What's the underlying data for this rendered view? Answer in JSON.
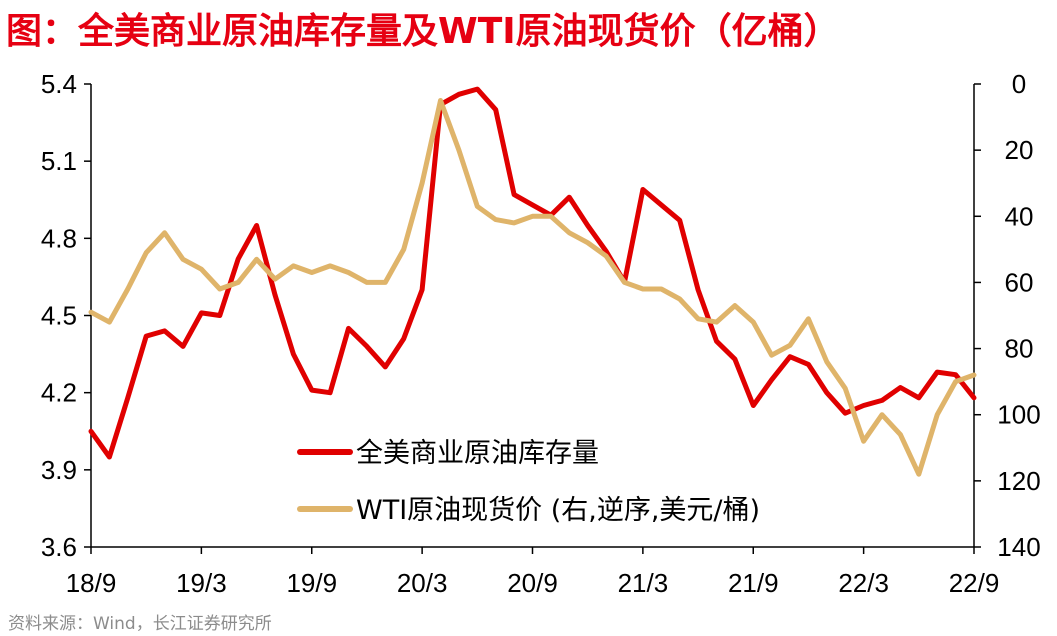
{
  "title": "图：全美商业原油库存量及WTI原油现货价（亿桶）",
  "source": "资料来源：Wind，长江证券研究所",
  "colors": {
    "title": "#e60012",
    "inventory": "#e00000",
    "wti": "#dfb46a",
    "axis": "#000000"
  },
  "chart_data": {
    "type": "line",
    "title": "图：全美商业原油库存量及WTI原油现货价（亿桶）",
    "x_tick_labels": [
      "18/9",
      "19/3",
      "19/9",
      "20/3",
      "20/9",
      "21/3",
      "21/9",
      "22/3",
      "22/9"
    ],
    "left_axis": {
      "range": [
        3.6,
        5.4
      ],
      "ticks": [
        "3.6",
        "3.9",
        "4.2",
        "4.5",
        "4.8",
        "5.1",
        "5.4"
      ]
    },
    "right_axis": {
      "range": [
        0,
        140
      ],
      "reversed": true,
      "ticks": [
        "0",
        "20",
        "40",
        "60",
        "80",
        "100",
        "120",
        "140"
      ]
    },
    "legend": [
      "全美商业原油库存量",
      "WTI原油现货价 (右,逆序,美元/桶)"
    ],
    "series": [
      {
        "name": "全美商业原油库存量",
        "axis": "left",
        "points": [
          [
            "2018-09",
            4.05
          ],
          [
            "2018-10",
            3.95
          ],
          [
            "2018-11",
            4.18
          ],
          [
            "2018-12",
            4.42
          ],
          [
            "2019-01",
            4.44
          ],
          [
            "2019-02",
            4.38
          ],
          [
            "2019-03",
            4.51
          ],
          [
            "2019-04",
            4.5
          ],
          [
            "2019-05",
            4.72
          ],
          [
            "2019-06",
            4.85
          ],
          [
            "2019-07",
            4.58
          ],
          [
            "2019-08",
            4.35
          ],
          [
            "2019-09",
            4.21
          ],
          [
            "2019-10",
            4.2
          ],
          [
            "2019-11",
            4.45
          ],
          [
            "2019-12",
            4.38
          ],
          [
            "2020-01",
            4.3
          ],
          [
            "2020-02",
            4.41
          ],
          [
            "2020-03",
            4.6
          ],
          [
            "2020-04",
            5.32
          ],
          [
            "2020-05",
            5.36
          ],
          [
            "2020-06",
            5.38
          ],
          [
            "2020-07",
            5.3
          ],
          [
            "2020-08",
            4.97
          ],
          [
            "2020-09",
            4.93
          ],
          [
            "2020-10",
            4.89
          ],
          [
            "2020-11",
            4.96
          ],
          [
            "2020-12",
            4.85
          ],
          [
            "2021-01",
            4.75
          ],
          [
            "2021-02",
            4.63
          ],
          [
            "2021-03",
            4.99
          ],
          [
            "2021-04",
            4.93
          ],
          [
            "2021-05",
            4.87
          ],
          [
            "2021-06",
            4.6
          ],
          [
            "2021-07",
            4.4
          ],
          [
            "2021-08",
            4.33
          ],
          [
            "2021-09",
            4.15
          ],
          [
            "2021-10",
            4.25
          ],
          [
            "2021-11",
            4.34
          ],
          [
            "2021-12",
            4.31
          ],
          [
            "2022-01",
            4.2
          ],
          [
            "2022-02",
            4.12
          ],
          [
            "2022-03",
            4.15
          ],
          [
            "2022-04",
            4.17
          ],
          [
            "2022-05",
            4.22
          ],
          [
            "2022-06",
            4.18
          ],
          [
            "2022-07",
            4.28
          ],
          [
            "2022-08",
            4.27
          ],
          [
            "2022-09",
            4.18
          ]
        ]
      },
      {
        "name": "WTI原油现货价 (右,逆序,美元/桶)",
        "axis": "right",
        "points": [
          [
            "2018-09",
            69
          ],
          [
            "2018-10",
            72
          ],
          [
            "2018-11",
            62
          ],
          [
            "2018-12",
            51
          ],
          [
            "2019-01",
            45
          ],
          [
            "2019-02",
            53
          ],
          [
            "2019-03",
            56
          ],
          [
            "2019-04",
            62
          ],
          [
            "2019-05",
            60
          ],
          [
            "2019-06",
            53
          ],
          [
            "2019-07",
            59
          ],
          [
            "2019-08",
            55
          ],
          [
            "2019-09",
            57
          ],
          [
            "2019-10",
            55
          ],
          [
            "2019-11",
            57
          ],
          [
            "2019-12",
            60
          ],
          [
            "2020-01",
            60
          ],
          [
            "2020-02",
            50
          ],
          [
            "2020-03",
            30
          ],
          [
            "2020-04",
            5
          ],
          [
            "2020-05",
            20
          ],
          [
            "2020-06",
            37
          ],
          [
            "2020-07",
            41
          ],
          [
            "2020-08",
            42
          ],
          [
            "2020-09",
            40
          ],
          [
            "2020-10",
            40
          ],
          [
            "2020-11",
            45
          ],
          [
            "2020-12",
            48
          ],
          [
            "2021-01",
            52
          ],
          [
            "2021-02",
            60
          ],
          [
            "2021-03",
            62
          ],
          [
            "2021-04",
            62
          ],
          [
            "2021-05",
            65
          ],
          [
            "2021-06",
            71
          ],
          [
            "2021-07",
            72
          ],
          [
            "2021-08",
            67
          ],
          [
            "2021-09",
            72
          ],
          [
            "2021-10",
            82
          ],
          [
            "2021-11",
            79
          ],
          [
            "2021-12",
            71
          ],
          [
            "2022-01",
            84
          ],
          [
            "2022-02",
            92
          ],
          [
            "2022-03",
            108
          ],
          [
            "2022-04",
            100
          ],
          [
            "2022-05",
            106
          ],
          [
            "2022-06",
            118
          ],
          [
            "2022-07",
            100
          ],
          [
            "2022-08",
            90
          ],
          [
            "2022-09",
            88
          ]
        ]
      }
    ],
    "grid": false,
    "legend_position": "bottom-center"
  }
}
